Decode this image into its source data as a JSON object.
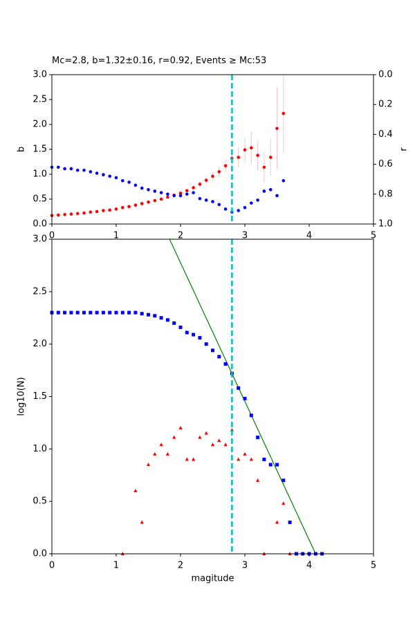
{
  "chart_data": [
    {
      "type": "scatter",
      "title": "Mc=2.8, b=1.32±0.16, r=0.92, Events ≥ Mc:53",
      "ylabel": "b",
      "y2label": "r",
      "xlim": [
        0,
        5
      ],
      "xticks": [
        0,
        1,
        2,
        3,
        4,
        5
      ],
      "ylim": [
        0,
        3
      ],
      "yticks": [
        {
          "value": 0,
          "label": "0.0"
        },
        {
          "value": 0.5,
          "label": "0.5"
        },
        {
          "value": 1,
          "label": "1.0"
        },
        {
          "value": 1.5,
          "label": "1.5"
        },
        {
          "value": 2,
          "label": "2.0"
        },
        {
          "value": 2.5,
          "label": "2.5"
        },
        {
          "value": 3,
          "label": "3.0"
        }
      ],
      "y2lim": [
        1,
        0
      ],
      "y2ticks": [
        {
          "value": 0,
          "label": "0.0"
        },
        {
          "value": 0.2,
          "label": "0.2"
        },
        {
          "value": 0.4,
          "label": "0.4"
        },
        {
          "value": 0.6,
          "label": "0.6"
        },
        {
          "value": 0.8,
          "label": "0.8"
        },
        {
          "value": 1,
          "label": "1.0"
        }
      ],
      "vline": {
        "x": 2.8,
        "color": "#00bfbf"
      },
      "series": [
        {
          "color": "#ff0000",
          "marker": "circle",
          "error_color": "#ffc0cb",
          "x": [
            0,
            0.1,
            0.2,
            0.3,
            0.4,
            0.5,
            0.6,
            0.7,
            0.8,
            0.9,
            1,
            1.1,
            1.2,
            1.3,
            1.4,
            1.5,
            1.6,
            1.7,
            1.8,
            1.9,
            2,
            2.1,
            2.2,
            2.3,
            2.4,
            2.5,
            2.6,
            2.7,
            2.8,
            2.9,
            3,
            3.1,
            3.2,
            3.3,
            3.4,
            3.5,
            3.6
          ],
          "values": [
            0.17,
            0.18,
            0.19,
            0.2,
            0.21,
            0.22,
            0.24,
            0.25,
            0.27,
            0.28,
            0.3,
            0.33,
            0.35,
            0.38,
            0.41,
            0.44,
            0.47,
            0.5,
            0.54,
            0.58,
            0.62,
            0.67,
            0.73,
            0.8,
            0.88,
            0.96,
            1.05,
            1.17,
            1.32,
            1.34,
            1.49,
            1.53,
            1.38,
            1.14,
            1.34,
            1.92,
            2.22
          ],
          "errors": [
            0.02,
            0.02,
            0.02,
            0.02,
            0.02,
            0.02,
            0.02,
            0.02,
            0.02,
            0.02,
            0.02,
            0.02,
            0.02,
            0.02,
            0.02,
            0.02,
            0.02,
            0.02,
            0.02,
            0.02,
            0.03,
            0.04,
            0.05,
            0.06,
            0.08,
            0.09,
            0.11,
            0.13,
            0.16,
            0.2,
            0.25,
            0.33,
            0.3,
            0.3,
            0.38,
            0.82,
            0.8
          ]
        },
        {
          "color": "#0000ff",
          "marker": "circle",
          "axis": "y2",
          "x": [
            0,
            0.1,
            0.2,
            0.3,
            0.4,
            0.5,
            0.6,
            0.7,
            0.8,
            0.9,
            1,
            1.1,
            1.2,
            1.3,
            1.4,
            1.5,
            1.6,
            1.7,
            1.8,
            1.9,
            2,
            2.1,
            2.2,
            2.3,
            2.4,
            2.5,
            2.6,
            2.7,
            2.8,
            2.9,
            3,
            3.1,
            3.2,
            3.3,
            3.4,
            3.5,
            3.6
          ],
          "values": [
            0.62,
            0.62,
            0.63,
            0.63,
            0.64,
            0.64,
            0.65,
            0.66,
            0.67,
            0.68,
            0.69,
            0.71,
            0.72,
            0.74,
            0.76,
            0.77,
            0.78,
            0.79,
            0.8,
            0.81,
            0.81,
            0.8,
            0.79,
            0.83,
            0.84,
            0.85,
            0.87,
            0.9,
            0.92,
            0.91,
            0.89,
            0.86,
            0.84,
            0.78,
            0.77,
            0.81,
            0.71
          ]
        }
      ]
    },
    {
      "type": "scatter",
      "xlabel": "magitude",
      "ylabel": "log10(N)",
      "xlim": [
        0,
        5
      ],
      "xticks": [
        0,
        1,
        2,
        3,
        4,
        5
      ],
      "ylim": [
        0,
        3
      ],
      "yticks": [
        {
          "value": 0,
          "label": "0.0"
        },
        {
          "value": 0.5,
          "label": "0.5"
        },
        {
          "value": 1,
          "label": "1.0"
        },
        {
          "value": 1.5,
          "label": "1.5"
        },
        {
          "value": 2,
          "label": "2.0"
        },
        {
          "value": 2.5,
          "label": "2.5"
        },
        {
          "value": 3,
          "label": "3.0"
        }
      ],
      "vline": {
        "x": 2.8,
        "color": "#00bfbf"
      },
      "series": [
        {
          "color": "#0000ff",
          "marker": "square",
          "x": [
            0,
            0.1,
            0.2,
            0.3,
            0.4,
            0.5,
            0.6,
            0.7,
            0.8,
            0.9,
            1,
            1.1,
            1.2,
            1.3,
            1.4,
            1.5,
            1.6,
            1.7,
            1.8,
            1.9,
            2,
            2.1,
            2.2,
            2.3,
            2.4,
            2.5,
            2.6,
            2.7,
            2.8,
            2.9,
            3,
            3.1,
            3.2,
            3.3,
            3.4,
            3.5,
            3.6,
            3.7,
            3.8,
            3.9,
            4,
            4.1,
            4.2
          ],
          "values": [
            2.3,
            2.3,
            2.3,
            2.3,
            2.3,
            2.3,
            2.3,
            2.3,
            2.3,
            2.3,
            2.3,
            2.3,
            2.3,
            2.3,
            2.29,
            2.28,
            2.27,
            2.25,
            2.23,
            2.2,
            2.16,
            2.11,
            2.09,
            2.06,
            2,
            1.94,
            1.88,
            1.81,
            1.72,
            1.58,
            1.48,
            1.32,
            1.11,
            0.9,
            0.85,
            0.85,
            0.7,
            0.3,
            0,
            0,
            0,
            0,
            0
          ]
        },
        {
          "color": "#ff0000",
          "marker": "triangle",
          "x": [
            1.1,
            1.3,
            1.4,
            1.5,
            1.6,
            1.7,
            1.8,
            1.9,
            2,
            2.1,
            2.2,
            2.3,
            2.4,
            2.5,
            2.6,
            2.7,
            2.8,
            2.9,
            3,
            3.1,
            3.2,
            3.3,
            3.5,
            3.6,
            3.7
          ],
          "values": [
            0,
            0.6,
            0.3,
            0.85,
            0.95,
            1.04,
            0.95,
            1.11,
            1.2,
            0.9,
            0.9,
            1.11,
            1.15,
            1.04,
            1.08,
            1.04,
            1.18,
            0.9,
            0.95,
            0.9,
            0.7,
            0,
            0.3,
            0.48,
            0
          ]
        },
        {
          "color": "#008000",
          "marker": "line",
          "x": [
            1.83,
            4.1
          ],
          "values": [
            3,
            0
          ]
        }
      ]
    }
  ]
}
